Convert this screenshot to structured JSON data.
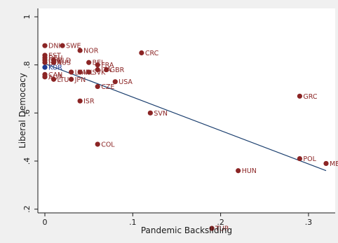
{
  "chart_data": {
    "type": "scatter",
    "title": "",
    "xlabel": "Pandemic Backsliding",
    "ylabel": "Liberal Democacy",
    "xlim": [
      0,
      0.32
    ],
    "ylim": [
      0.1,
      1.0
    ],
    "x_ticks": [
      0,
      0.1,
      0.2,
      0.3
    ],
    "x_tick_labels": [
      "0",
      ".1",
      ".2",
      ".3"
    ],
    "y_ticks": [
      0.2,
      0.4,
      0.6,
      0.8,
      1.0
    ],
    "y_tick_labels": [
      ".2",
      ".4",
      ".6",
      ".8",
      "1"
    ],
    "grid": false,
    "legend": "none",
    "colors": {
      "page_background": "#f0f0f0",
      "plot_background": "#ffffff",
      "marker": "#8b2525",
      "highlight_marker": "#1f3a93",
      "fit_line": "#1a3e6e",
      "label_text": "#8b2525",
      "highlight_label_text": "#1f3a93"
    },
    "points": [
      {
        "label": "DNK",
        "x": 0.0,
        "y": 0.88
      },
      {
        "label": "SWE",
        "x": 0.02,
        "y": 0.88
      },
      {
        "label": "NOR",
        "x": 0.04,
        "y": 0.86
      },
      {
        "label": "CRC",
        "x": 0.11,
        "y": 0.85
      },
      {
        "label": "EST",
        "x": 0.0,
        "y": 0.84
      },
      {
        "label": "DEU",
        "x": 0.0,
        "y": 0.83
      },
      {
        "label": "CHE",
        "x": 0.0,
        "y": 0.82
      },
      {
        "label": "NLD",
        "x": 0.01,
        "y": 0.82
      },
      {
        "label": "AUS",
        "x": 0.01,
        "y": 0.81
      },
      {
        "label": "LUX",
        "x": 0.0,
        "y": 0.81
      },
      {
        "label": "BEL",
        "x": 0.05,
        "y": 0.81
      },
      {
        "label": "FRA",
        "x": 0.06,
        "y": 0.8
      },
      {
        "label": "KOR",
        "x": 0.0,
        "y": 0.79,
        "highlight": true
      },
      {
        "label": "GBR",
        "x": 0.07,
        "y": 0.78
      },
      {
        "label": "ITA",
        "x": 0.06,
        "y": 0.78
      },
      {
        "label": "IRL",
        "x": 0.04,
        "y": 0.77
      },
      {
        "label": "SVK",
        "x": 0.05,
        "y": 0.77
      },
      {
        "label": "LVA",
        "x": 0.03,
        "y": 0.77
      },
      {
        "label": "CAN",
        "x": 0.0,
        "y": 0.76
      },
      {
        "label": "AUT",
        "x": 0.0,
        "y": 0.75
      },
      {
        "label": "LTU",
        "x": 0.01,
        "y": 0.74
      },
      {
        "label": "JPN",
        "x": 0.03,
        "y": 0.74
      },
      {
        "label": "USA",
        "x": 0.08,
        "y": 0.73
      },
      {
        "label": "CZE",
        "x": 0.06,
        "y": 0.71
      },
      {
        "label": "GRC",
        "x": 0.29,
        "y": 0.67
      },
      {
        "label": "ISR",
        "x": 0.04,
        "y": 0.65
      },
      {
        "label": "SVN",
        "x": 0.12,
        "y": 0.6
      },
      {
        "label": "COL",
        "x": 0.06,
        "y": 0.47
      },
      {
        "label": "POL",
        "x": 0.29,
        "y": 0.41
      },
      {
        "label": "MEX",
        "x": 0.32,
        "y": 0.39
      },
      {
        "label": "HUN",
        "x": 0.22,
        "y": 0.36
      },
      {
        "label": "TUR",
        "x": 0.19,
        "y": 0.12
      }
    ],
    "fit_line": {
      "x": [
        0,
        0.32
      ],
      "y": [
        0.805,
        0.36
      ]
    }
  }
}
